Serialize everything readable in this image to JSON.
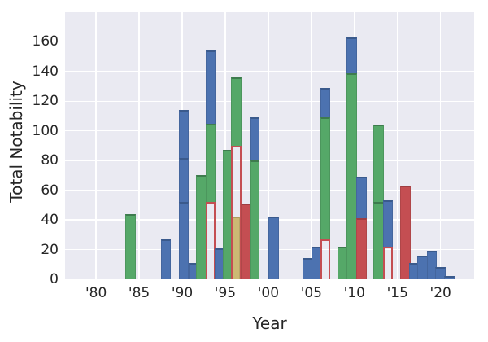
{
  "axes": {
    "ylabel": "Total Notability",
    "xlabel": "Year",
    "ylim": [
      0,
      180
    ],
    "xlim": [
      1976.4,
      2023.9
    ],
    "yticks": [
      {
        "v": 0,
        "label": "0"
      },
      {
        "v": 20,
        "label": "20"
      },
      {
        "v": 40,
        "label": "40"
      },
      {
        "v": 60,
        "label": "60"
      },
      {
        "v": 80,
        "label": "80"
      },
      {
        "v": 100,
        "label": "100"
      },
      {
        "v": 120,
        "label": "120"
      },
      {
        "v": 140,
        "label": "140"
      },
      {
        "v": 160,
        "label": "160"
      }
    ],
    "xticks": [
      {
        "v": 1980,
        "label": "'80"
      },
      {
        "v": 1985,
        "label": "'85"
      },
      {
        "v": 1990,
        "label": "'90"
      },
      {
        "v": 1995,
        "label": "'95"
      },
      {
        "v": 2000,
        "label": "'00"
      },
      {
        "v": 2005,
        "label": "'05"
      },
      {
        "v": 2010,
        "label": "'10"
      },
      {
        "v": 2015,
        "label": "'15"
      },
      {
        "v": 2020,
        "label": "'20"
      }
    ],
    "grid": true
  },
  "palette": {
    "blue": "#4C72B0",
    "green": "#55A868",
    "red": "#C44E52",
    "khaki": "#CCB974",
    "blue_edge": "#3A5A8C",
    "green_edge": "#3E7B4E",
    "red_edge": "#9D3E42",
    "khaki_edge": "#AB9B5D",
    "outline_edge": "#C44E52",
    "plot_background": "#EAEAF2",
    "grid_color": "#FFFFFF",
    "text_color": "#262626"
  },
  "chart_data": {
    "type": "bar",
    "stacked": true,
    "title": "",
    "xlabel": "Year",
    "ylabel": "Total Notability",
    "xlim": [
      1976.4,
      2023.9
    ],
    "ylim": [
      0,
      180
    ],
    "grid": true,
    "legend_position": "none",
    "note": "Stacked yearly bars; 'outline' segments are unfilled with red edges (plot background visible inside); segment 'top' values are cumulative totals.",
    "bars": [
      {
        "x": 1984.0,
        "total": 44,
        "segments": [
          {
            "color": "green",
            "top": 44
          }
        ]
      },
      {
        "x": 1988.1,
        "total": 27,
        "segments": [
          {
            "color": "blue",
            "top": 27
          }
        ]
      },
      {
        "x": 1990.2,
        "total": 114,
        "segments": [
          {
            "color": "blue",
            "top": 52
          },
          {
            "color": "blue",
            "top": 82
          },
          {
            "color": "blue",
            "top": 114
          }
        ]
      },
      {
        "x": 1991.3,
        "total": 11,
        "segments": [
          {
            "color": "blue",
            "top": 11
          }
        ]
      },
      {
        "x": 1992.2,
        "total": 70,
        "segments": [
          {
            "color": "green",
            "top": 70
          }
        ]
      },
      {
        "x": 1993.3,
        "total": 154,
        "segments": [
          {
            "color": "outline",
            "top": 52
          },
          {
            "color": "green",
            "top": 105
          },
          {
            "color": "blue",
            "top": 154
          }
        ]
      },
      {
        "x": 1994.4,
        "total": 21,
        "segments": [
          {
            "color": "blue",
            "top": 21
          }
        ]
      },
      {
        "x": 1995.3,
        "total": 87,
        "segments": [
          {
            "color": "green",
            "top": 87
          }
        ]
      },
      {
        "x": 1996.3,
        "total": 136,
        "segments": [
          {
            "color": "khaki",
            "top": 42
          },
          {
            "color": "outline",
            "top": 90
          },
          {
            "color": "green",
            "top": 136
          }
        ]
      },
      {
        "x": 1997.4,
        "total": 51,
        "segments": [
          {
            "color": "red",
            "top": 51
          }
        ]
      },
      {
        "x": 1998.4,
        "total": 109,
        "segments": [
          {
            "color": "green",
            "top": 80
          },
          {
            "color": "blue",
            "top": 109
          }
        ]
      },
      {
        "x": 2000.6,
        "total": 42,
        "segments": [
          {
            "color": "blue",
            "top": 42
          }
        ]
      },
      {
        "x": 2004.6,
        "total": 14,
        "segments": [
          {
            "color": "blue",
            "top": 14
          }
        ]
      },
      {
        "x": 2005.6,
        "total": 22,
        "segments": [
          {
            "color": "blue",
            "top": 22
          }
        ]
      },
      {
        "x": 2006.6,
        "total": 129,
        "segments": [
          {
            "color": "outline",
            "top": 27
          },
          {
            "color": "green",
            "top": 109
          },
          {
            "color": "blue",
            "top": 129
          }
        ]
      },
      {
        "x": 2008.6,
        "total": 22,
        "segments": [
          {
            "color": "green",
            "top": 22
          }
        ]
      },
      {
        "x": 2009.7,
        "total": 163,
        "segments": [
          {
            "color": "green",
            "top": 139
          },
          {
            "color": "blue",
            "top": 163
          }
        ]
      },
      {
        "x": 2010.8,
        "total": 69,
        "segments": [
          {
            "color": "red",
            "top": 41
          },
          {
            "color": "blue",
            "top": 69
          }
        ]
      },
      {
        "x": 2012.8,
        "total": 104,
        "segments": [
          {
            "color": "green",
            "top": 52
          },
          {
            "color": "green",
            "top": 104
          }
        ]
      },
      {
        "x": 2013.9,
        "total": 53,
        "segments": [
          {
            "color": "outline",
            "top": 22
          },
          {
            "color": "blue",
            "top": 53
          }
        ]
      },
      {
        "x": 2015.9,
        "total": 63,
        "segments": [
          {
            "color": "red",
            "top": 63
          }
        ]
      },
      {
        "x": 2016.9,
        "total": 11,
        "segments": [
          {
            "color": "blue",
            "top": 11
          }
        ]
      },
      {
        "x": 2017.9,
        "total": 16,
        "segments": [
          {
            "color": "blue",
            "top": 16
          }
        ]
      },
      {
        "x": 2019.0,
        "total": 19,
        "segments": [
          {
            "color": "blue",
            "top": 19
          }
        ]
      },
      {
        "x": 2020.0,
        "total": 8,
        "segments": [
          {
            "color": "blue",
            "top": 8
          }
        ]
      },
      {
        "x": 2021.0,
        "total": 2,
        "segments": [
          {
            "color": "blue",
            "top": 2
          }
        ]
      }
    ]
  }
}
